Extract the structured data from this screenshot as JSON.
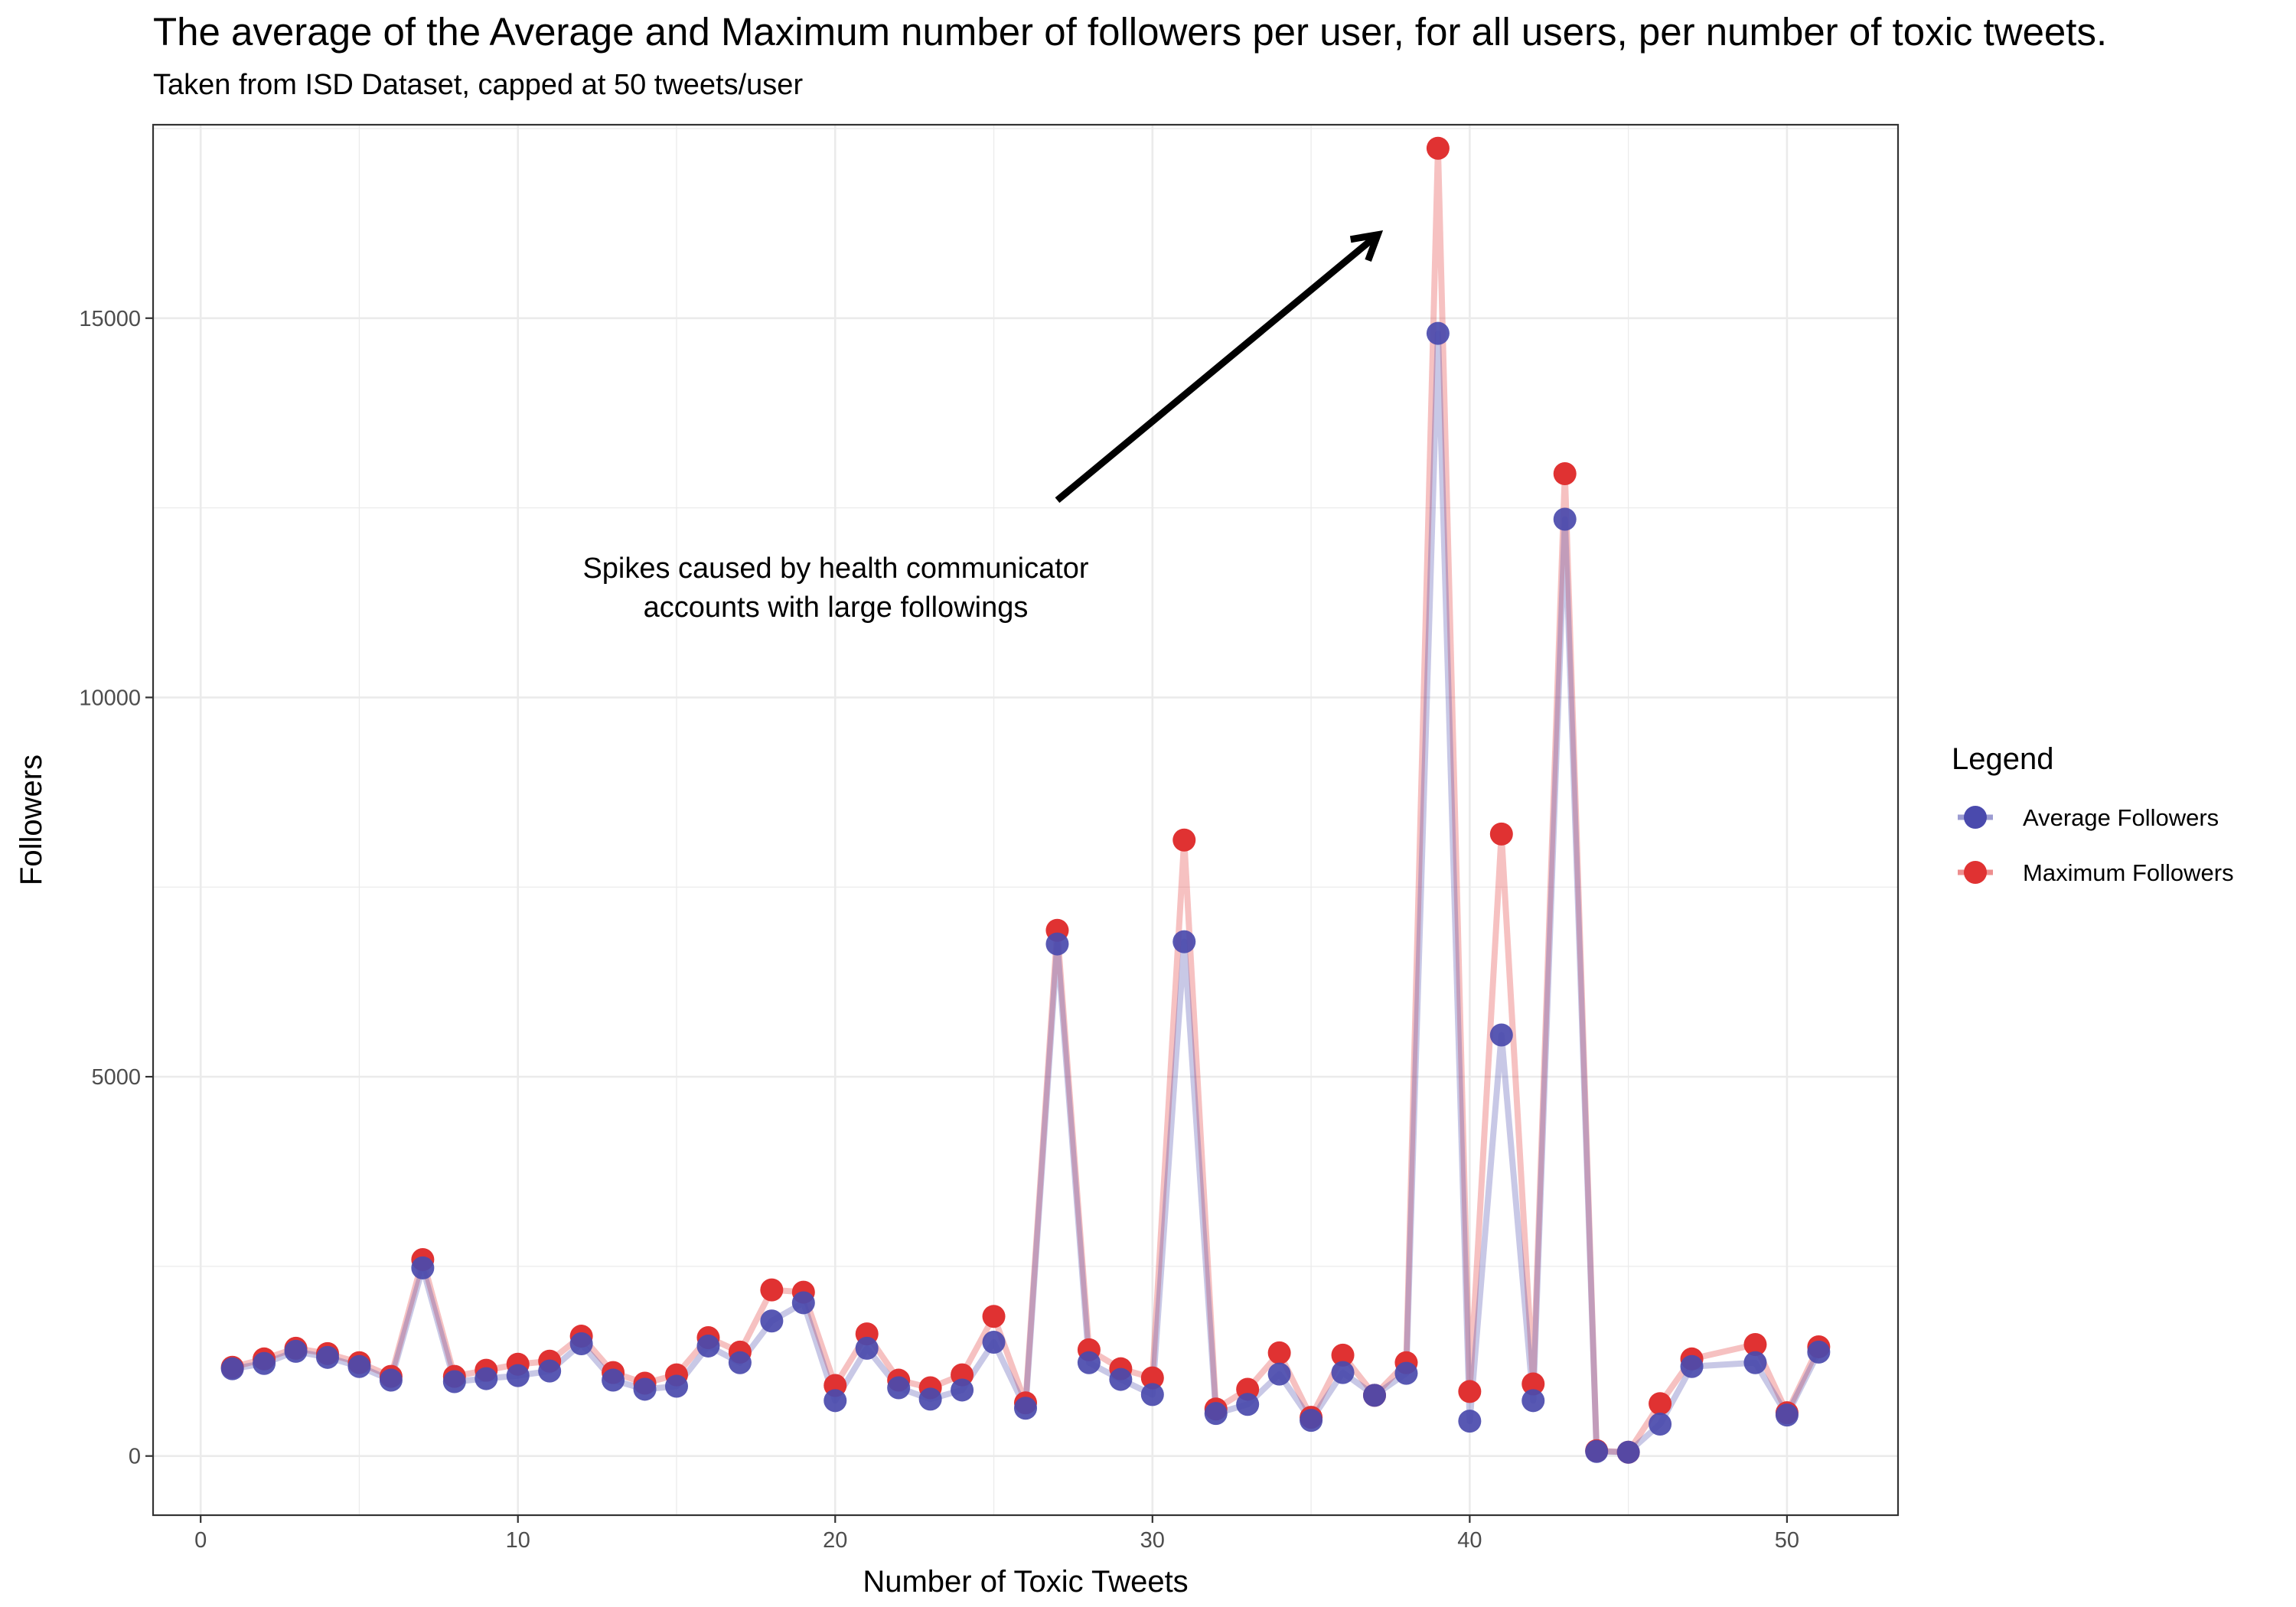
{
  "chart_data": {
    "type": "line",
    "title": "The average of the Average and Maximum number of followers per user, for all users, per number of toxic tweets.",
    "subtitle": "Taken from ISD Dataset, capped at 50 tweets/user",
    "xlabel": "Number of Toxic Tweets",
    "ylabel": "Followers",
    "xlim": [
      -1.5,
      53.5
    ],
    "ylim": [
      -780,
      17550
    ],
    "x_ticks": [
      0,
      10,
      20,
      30,
      40,
      50
    ],
    "y_ticks": [
      0,
      5000,
      10000,
      15000
    ],
    "grid": true,
    "legend": {
      "title": "Legend",
      "position": "right"
    },
    "annotation": {
      "lines": [
        "Spikes caused by health communicator",
        "accounts with large followings"
      ],
      "arrow_from": [
        27,
        12600
      ],
      "arrow_to": [
        37.1,
        16100
      ]
    },
    "x": [
      1,
      2,
      3,
      4,
      5,
      6,
      7,
      8,
      9,
      10,
      11,
      12,
      13,
      14,
      15,
      16,
      17,
      18,
      19,
      20,
      21,
      22,
      23,
      24,
      25,
      26,
      27,
      28,
      29,
      30,
      31,
      32,
      33,
      34,
      35,
      36,
      37,
      38,
      39,
      40,
      41,
      42,
      43,
      44,
      45,
      46,
      47,
      49,
      50,
      51
    ],
    "series": [
      {
        "name": "Average Followers",
        "color": "#4a4aad",
        "line_color": "#c5c7e6",
        "values": [
          1150,
          1220,
          1380,
          1300,
          1180,
          1000,
          2480,
          980,
          1020,
          1060,
          1120,
          1480,
          1000,
          880,
          920,
          1450,
          1230,
          1780,
          2020,
          730,
          1420,
          900,
          750,
          870,
          1500,
          630,
          6750,
          1230,
          1010,
          810,
          6780,
          560,
          680,
          1080,
          470,
          1100,
          800,
          1090,
          14800,
          460,
          5550,
          730,
          12350,
          60,
          50,
          420,
          1180,
          1230,
          540,
          1370
        ]
      },
      {
        "name": "Maximum Followers",
        "color": "#e03232",
        "line_color": "#f4c2c2",
        "values": [
          1170,
          1280,
          1420,
          1350,
          1230,
          1050,
          2590,
          1050,
          1130,
          1210,
          1250,
          1580,
          1100,
          960,
          1070,
          1560,
          1370,
          2190,
          2160,
          930,
          1610,
          1000,
          900,
          1070,
          1840,
          700,
          6930,
          1400,
          1150,
          1030,
          8120,
          620,
          880,
          1360,
          510,
          1330,
          800,
          1230,
          17240,
          850,
          8200,
          950,
          12950,
          70,
          50,
          690,
          1280,
          1470,
          570,
          1440
        ]
      }
    ]
  }
}
